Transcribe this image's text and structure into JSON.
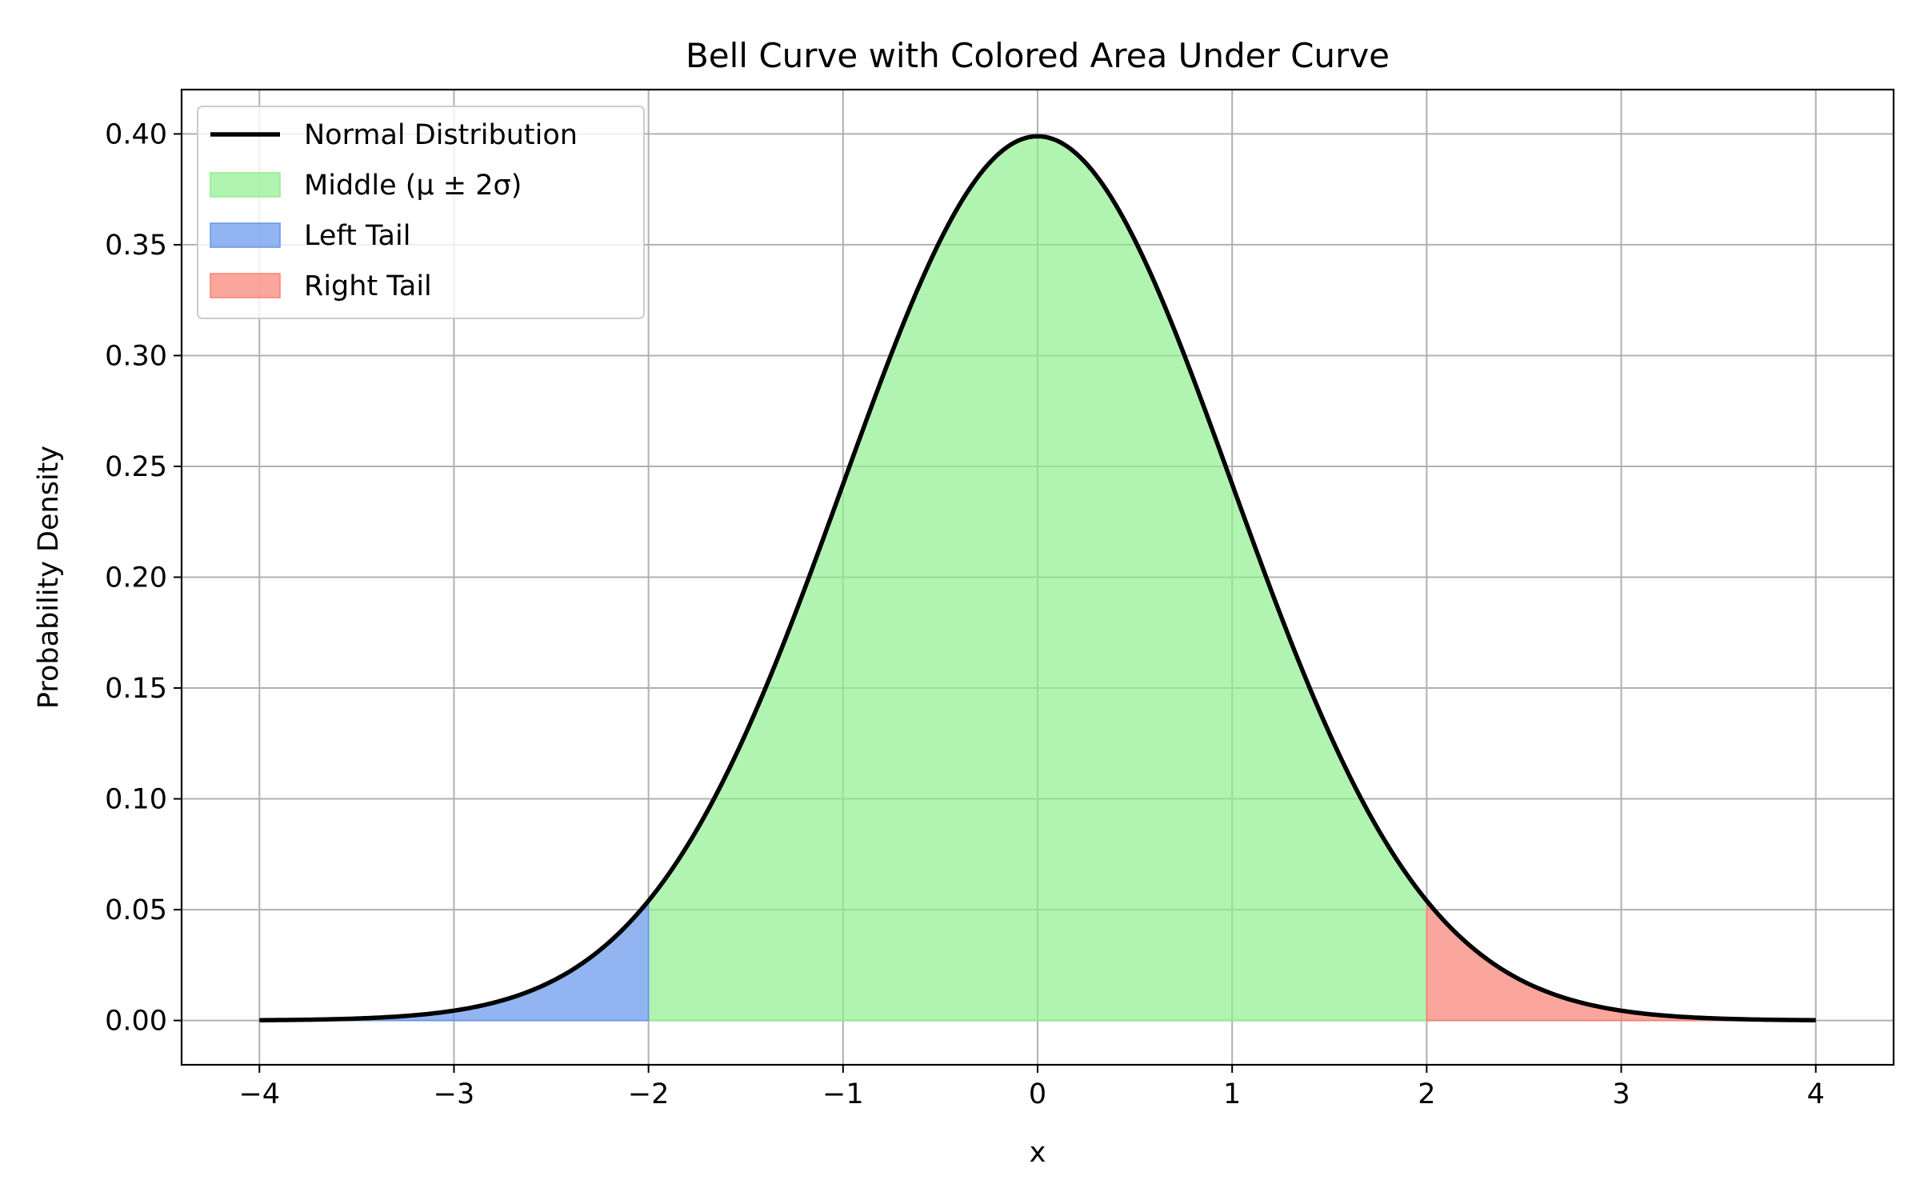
{
  "chart_data": {
    "type": "area",
    "title": "Bell Curve with Colored Area Under Curve",
    "xlabel": "x",
    "ylabel": "Probability Density",
    "xlim": [
      -4.4,
      4.4
    ],
    "ylim": [
      -0.02,
      0.42
    ],
    "x_ticks": [
      -4,
      -3,
      -2,
      -1,
      0,
      1,
      2,
      3,
      4
    ],
    "x_tick_labels": [
      "−4",
      "−3",
      "−2",
      "−1",
      "0",
      "1",
      "2",
      "3",
      "4"
    ],
    "y_ticks": [
      0.0,
      0.05,
      0.1,
      0.15,
      0.2,
      0.25,
      0.3,
      0.35,
      0.4
    ],
    "y_tick_labels": [
      "0.00",
      "0.05",
      "0.10",
      "0.15",
      "0.20",
      "0.25",
      "0.30",
      "0.35",
      "0.40"
    ],
    "grid": true,
    "legend_position": "top-left",
    "series": [
      {
        "name": "Normal Distribution",
        "kind": "line",
        "color": "#000000",
        "x": [
          -4,
          -3.5,
          -3,
          -2.5,
          -2,
          -1.5,
          -1,
          -0.5,
          0,
          0.5,
          1,
          1.5,
          2,
          2.5,
          3,
          3.5,
          4
        ],
        "y": [
          0.0001,
          0.0009,
          0.0044,
          0.0175,
          0.054,
          0.1295,
          0.242,
          0.3521,
          0.3989,
          0.3521,
          0.242,
          0.1295,
          0.054,
          0.0175,
          0.0044,
          0.0009,
          0.0001
        ]
      },
      {
        "name": "Middle (μ ± 2σ)",
        "kind": "fill",
        "color": "#90ee90",
        "x_range": [
          -2,
          2
        ]
      },
      {
        "name": "Left Tail",
        "kind": "fill",
        "color": "#6495ed",
        "x_range": [
          -4,
          -2
        ]
      },
      {
        "name": "Right Tail",
        "kind": "fill",
        "color": "#fa8072",
        "x_range": [
          2,
          4
        ]
      }
    ]
  }
}
